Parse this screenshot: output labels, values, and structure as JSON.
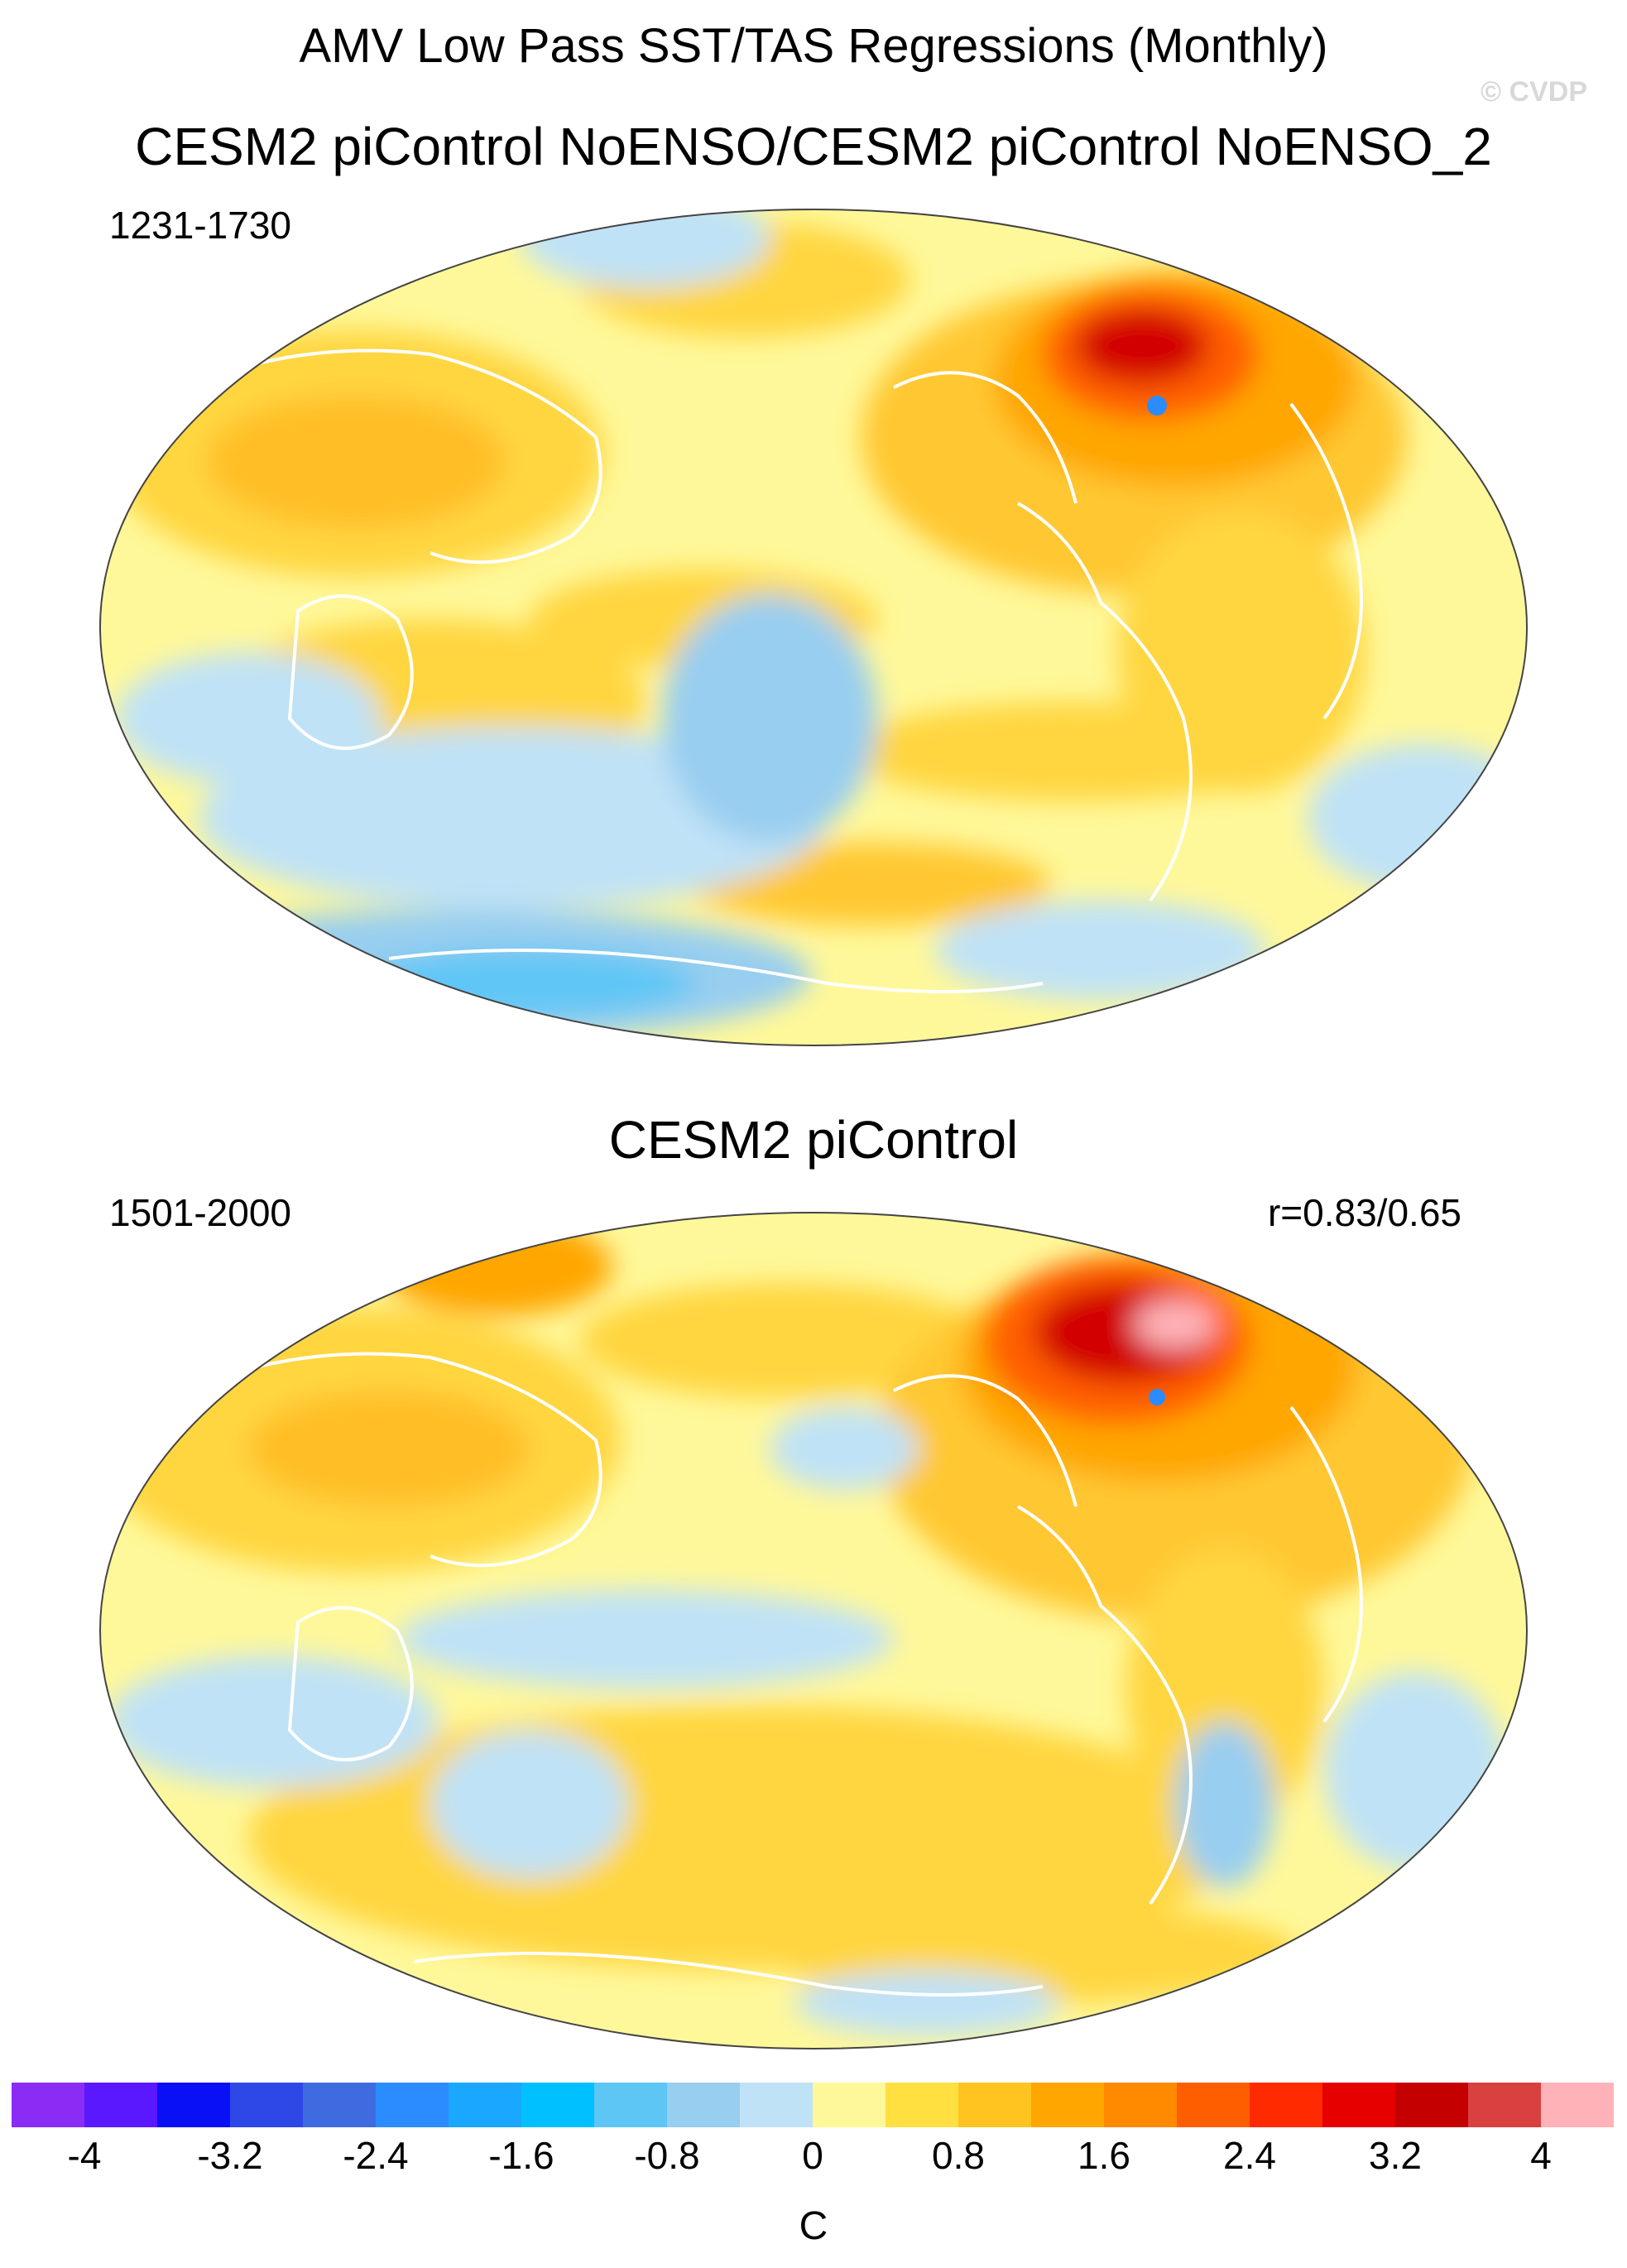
{
  "header": {
    "title": "AMV Low Pass SST/TAS Regressions (Monthly)",
    "watermark": "© CVDP"
  },
  "panels": [
    {
      "title": "CESM2 piControl NoENSO/CESM2 piControl NoENSO_2",
      "period": "1231-1730",
      "pattern_correlation": ""
    },
    {
      "title": "CESM2 piControl",
      "period": "1501-2000",
      "pattern_correlation": "r=0.83/0.65"
    }
  ],
  "projection": "Robinson-like (Pacific-centered)",
  "colorbar": {
    "unit": "C",
    "min": -4.4,
    "max": 4.4,
    "step": 0.4,
    "tick_labels": [
      "-4",
      "-3.2",
      "-2.4",
      "-1.6",
      "-0.8",
      "0",
      "0.8",
      "1.6",
      "2.4",
      "3.2",
      "4"
    ],
    "colors": [
      "#8b2cf5",
      "#5a18ff",
      "#0a10f5",
      "#2e48e8",
      "#3e6be0",
      "#2a8cff",
      "#1aa8ff",
      "#00c0ff",
      "#5ec6f5",
      "#98cef0",
      "#bfe2f6",
      "#fff89a",
      "#ffe040",
      "#ffc41f",
      "#ffa600",
      "#ff8a00",
      "#ff5e00",
      "#ff2a00",
      "#e60000",
      "#c40000",
      "#d94040",
      "#ffb3b8"
    ]
  }
}
